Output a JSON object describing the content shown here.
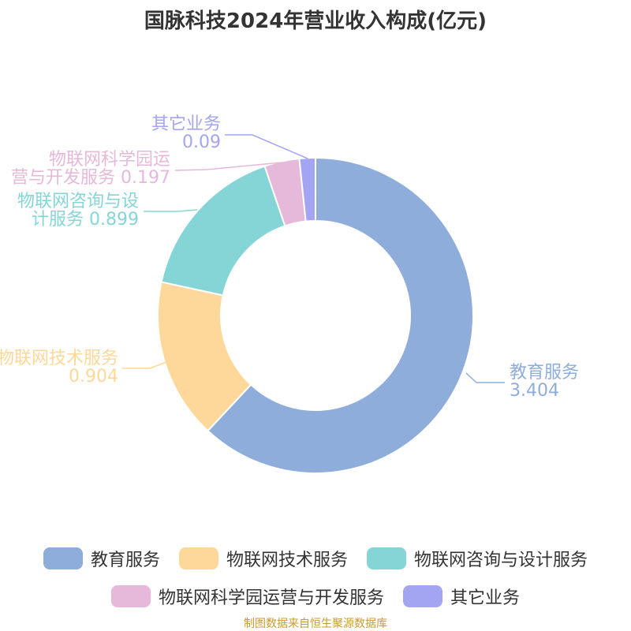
{
  "title": "国脉科技2024年营业收入构成(亿元)",
  "source": "制图数据来自恒生聚源数据库",
  "chart_data": {
    "type": "pie",
    "donut": true,
    "categories": [
      "教育服务",
      "物联网技术服务",
      "物联网咨询与设计服务",
      "物联网科学园运营与开发服务",
      "其它业务"
    ],
    "values": [
      3.404,
      0.904,
      0.899,
      0.197,
      0.09
    ],
    "colors": [
      "#8eaddb",
      "#fdd89a",
      "#86d5d6",
      "#e6b8d9",
      "#a3a5f3"
    ],
    "slice_labels": [
      [
        "教育服务",
        "3.404"
      ],
      [
        "物联网技术服务",
        "0.904"
      ],
      [
        "物联网咨询与设",
        "计服务 0.899"
      ],
      [
        "物联网科学园运",
        "营与开发服务 0.197"
      ],
      [
        "其它业务",
        "0.09"
      ]
    ],
    "legend_position": "bottom"
  }
}
